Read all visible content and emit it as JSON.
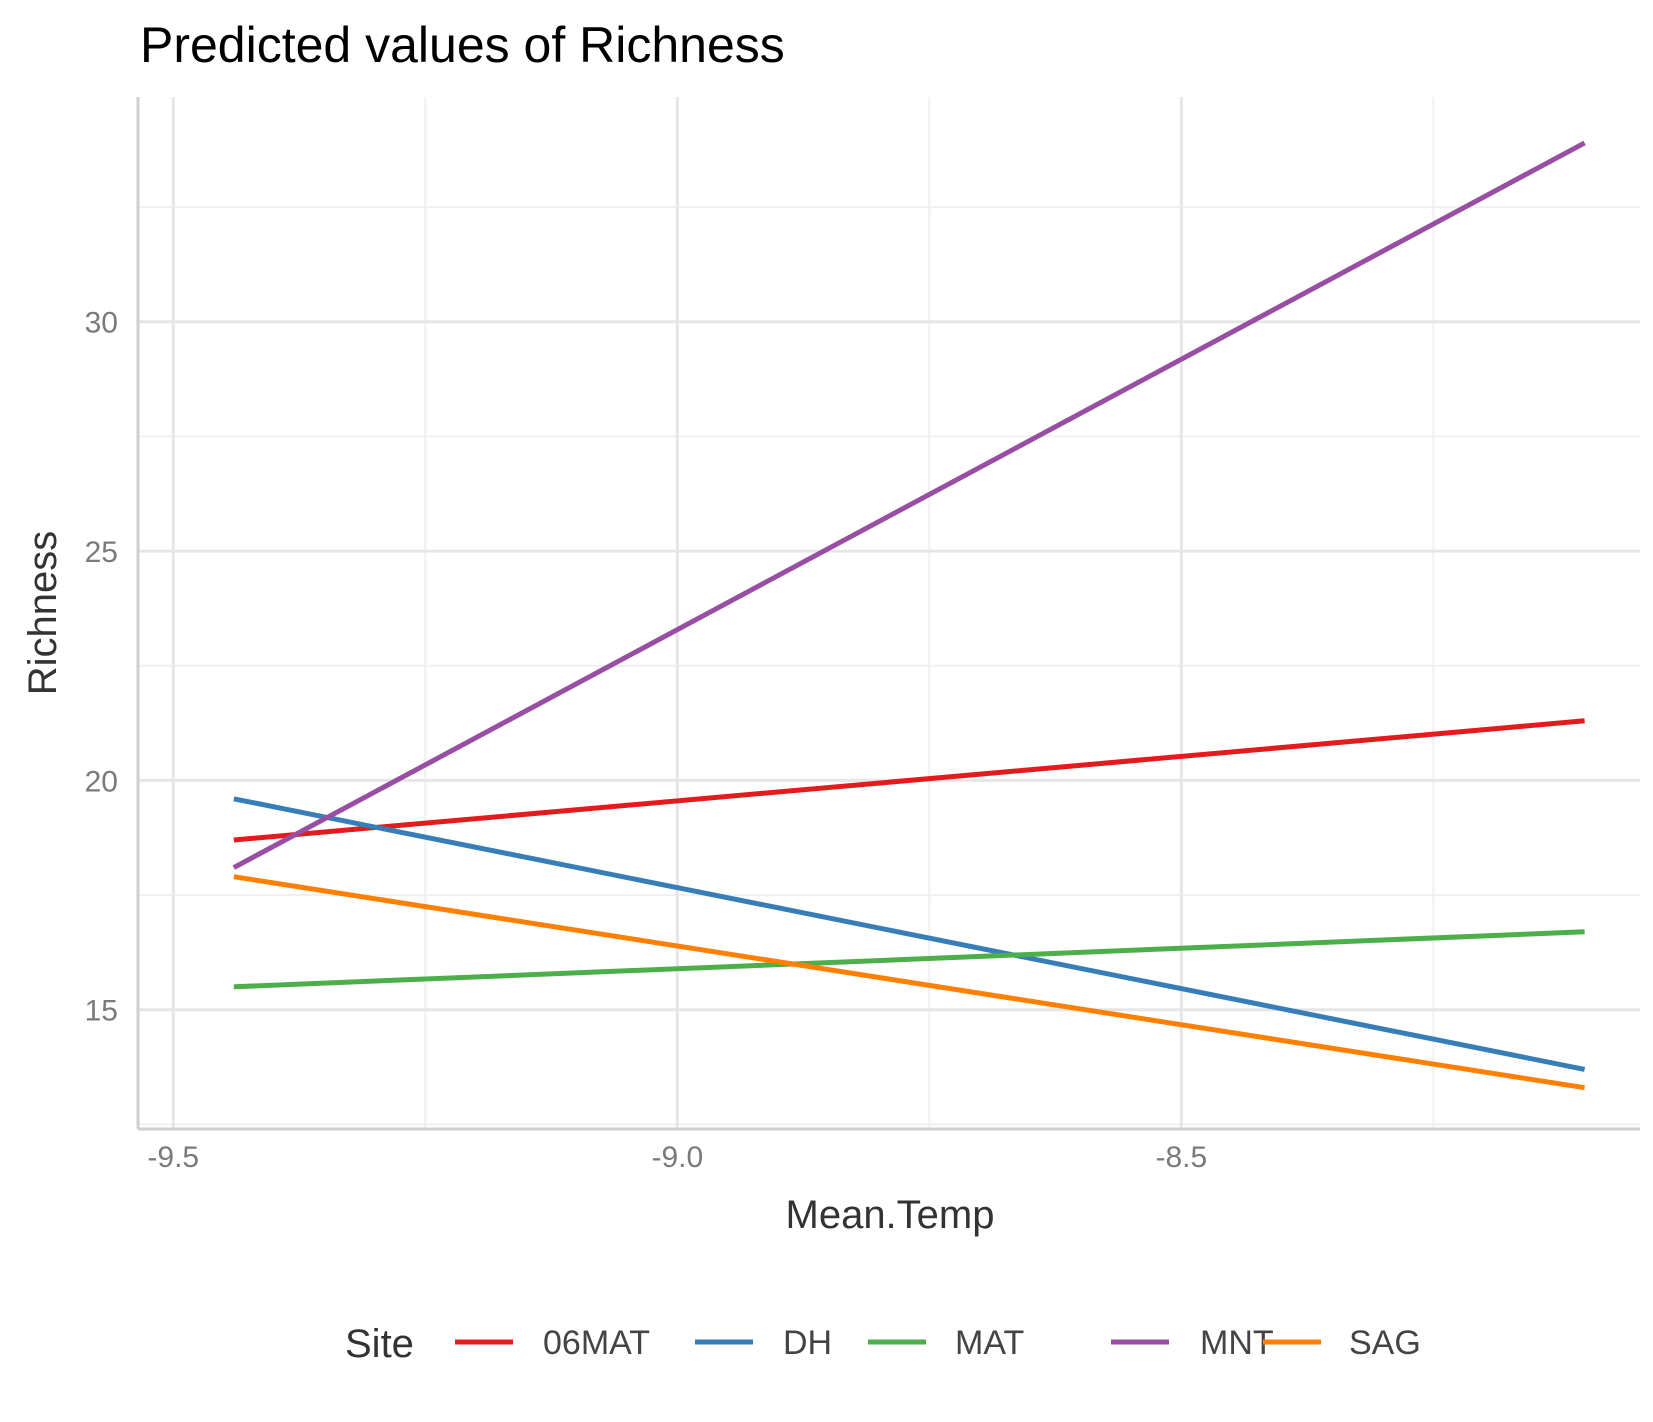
{
  "chart_data": {
    "type": "line",
    "title": "Predicted values of Richness",
    "xlabel": "Mean.Temp",
    "ylabel": "Richness",
    "xlim": [
      -9.535,
      -8.045
    ],
    "ylim": [
      12.4,
      34.9
    ],
    "x_ticks": [
      -9.5,
      -9.0,
      -8.5
    ],
    "x_tick_labels": [
      "-9.5",
      "-9.0",
      "-8.5"
    ],
    "y_ticks": [
      15,
      20,
      25,
      30
    ],
    "y_tick_labels": [
      "15",
      "20",
      "25",
      "30"
    ],
    "grid": true,
    "legend_title": "Site",
    "legend_position": "bottom",
    "series": [
      {
        "name": "06MAT",
        "color": "#e41a1c",
        "x": [
          -9.44,
          -8.1
        ],
        "y": [
          18.7,
          21.3
        ]
      },
      {
        "name": "DH",
        "color": "#377eb8",
        "x": [
          -9.44,
          -8.1
        ],
        "y": [
          19.6,
          13.7
        ]
      },
      {
        "name": "MAT",
        "color": "#4daf4a",
        "x": [
          -9.44,
          -8.1
        ],
        "y": [
          15.5,
          16.7
        ]
      },
      {
        "name": "MNT",
        "color": "#984ea3",
        "x": [
          -9.44,
          -8.1
        ],
        "y": [
          18.1,
          33.9
        ]
      },
      {
        "name": "SAG",
        "color": "#ff7f00",
        "x": [
          -9.44,
          -8.1
        ],
        "y": [
          17.9,
          13.3
        ]
      }
    ]
  }
}
